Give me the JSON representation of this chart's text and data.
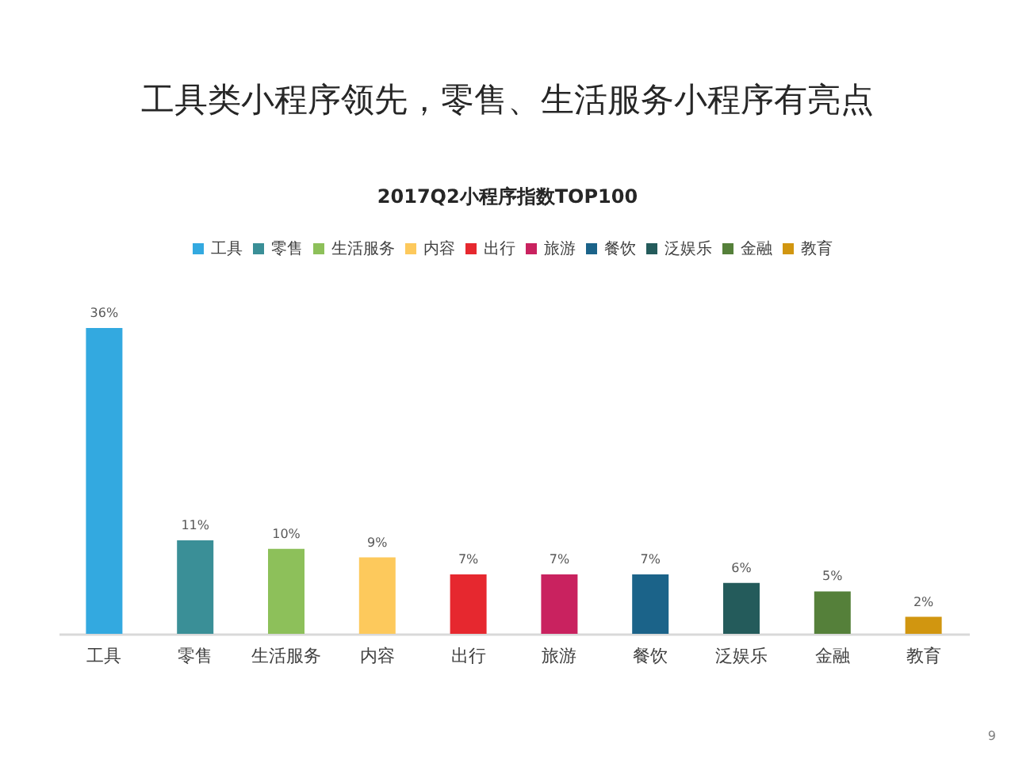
{
  "chart_data": {
    "type": "bar",
    "title": "工具类小程序领先，零售、生活服务小程序有亮点",
    "subtitle": "2017Q2小程序指数TOP100",
    "categories": [
      "工具",
      "零售",
      "生活服务",
      "内容",
      "出行",
      "旅游",
      "餐饮",
      "泛娱乐",
      "金融",
      "教育"
    ],
    "stacked": true,
    "series": [
      {
        "name": "工具",
        "color": "#33a9e0",
        "values": [
          36,
          null,
          null,
          null,
          null,
          null,
          null,
          null,
          null,
          null
        ],
        "value_labels": [
          "36%",
          null,
          null,
          null,
          null,
          null,
          null,
          null,
          null,
          null
        ]
      },
      {
        "name": "零售",
        "color": "#3a8f97",
        "values": [
          null,
          11,
          null,
          null,
          null,
          null,
          null,
          null,
          null,
          null
        ],
        "value_labels": [
          null,
          "11%",
          null,
          null,
          null,
          null,
          null,
          null,
          null,
          null
        ]
      },
      {
        "name": "生活服务",
        "color": "#8dc05a",
        "values": [
          null,
          null,
          10,
          null,
          null,
          null,
          null,
          null,
          null,
          null
        ],
        "value_labels": [
          null,
          null,
          "10%",
          null,
          null,
          null,
          null,
          null,
          null,
          null
        ]
      },
      {
        "name": "内容",
        "color": "#fdc95c",
        "values": [
          null,
          null,
          null,
          9,
          null,
          null,
          null,
          null,
          null,
          null
        ],
        "value_labels": [
          null,
          null,
          null,
          "9%",
          null,
          null,
          null,
          null,
          null,
          null
        ]
      },
      {
        "name": "出行",
        "color": "#e6282f",
        "values": [
          null,
          null,
          null,
          null,
          7,
          null,
          null,
          null,
          null,
          null
        ],
        "value_labels": [
          null,
          null,
          null,
          null,
          "7%",
          null,
          null,
          null,
          null,
          null
        ]
      },
      {
        "name": "旅游",
        "color": "#c9225f",
        "values": [
          null,
          null,
          null,
          null,
          null,
          7,
          null,
          null,
          null,
          null
        ],
        "value_labels": [
          null,
          null,
          null,
          null,
          null,
          "7%",
          null,
          null,
          null,
          null
        ]
      },
      {
        "name": "餐饮",
        "color": "#1b6389",
        "values": [
          null,
          null,
          null,
          null,
          null,
          null,
          7,
          null,
          null,
          null
        ],
        "value_labels": [
          null,
          null,
          null,
          null,
          null,
          null,
          "7%",
          null,
          null,
          null
        ]
      },
      {
        "name": "泛娱乐",
        "color": "#245b5b",
        "values": [
          null,
          null,
          null,
          null,
          null,
          null,
          null,
          6,
          null,
          null
        ],
        "value_labels": [
          null,
          null,
          null,
          null,
          null,
          null,
          null,
          "6%",
          null,
          null
        ]
      },
      {
        "name": "金融",
        "color": "#55803a",
        "values": [
          null,
          null,
          null,
          null,
          null,
          null,
          null,
          null,
          5,
          null
        ],
        "value_labels": [
          null,
          null,
          null,
          null,
          null,
          null,
          null,
          null,
          "5%",
          null
        ]
      },
      {
        "name": "教育",
        "color": "#d19610",
        "values": [
          null,
          null,
          null,
          null,
          null,
          null,
          null,
          null,
          null,
          2
        ],
        "value_labels": [
          null,
          null,
          null,
          null,
          null,
          null,
          null,
          null,
          null,
          "2%"
        ]
      }
    ],
    "legend": "top",
    "annotations": [
      "9"
    ]
  }
}
